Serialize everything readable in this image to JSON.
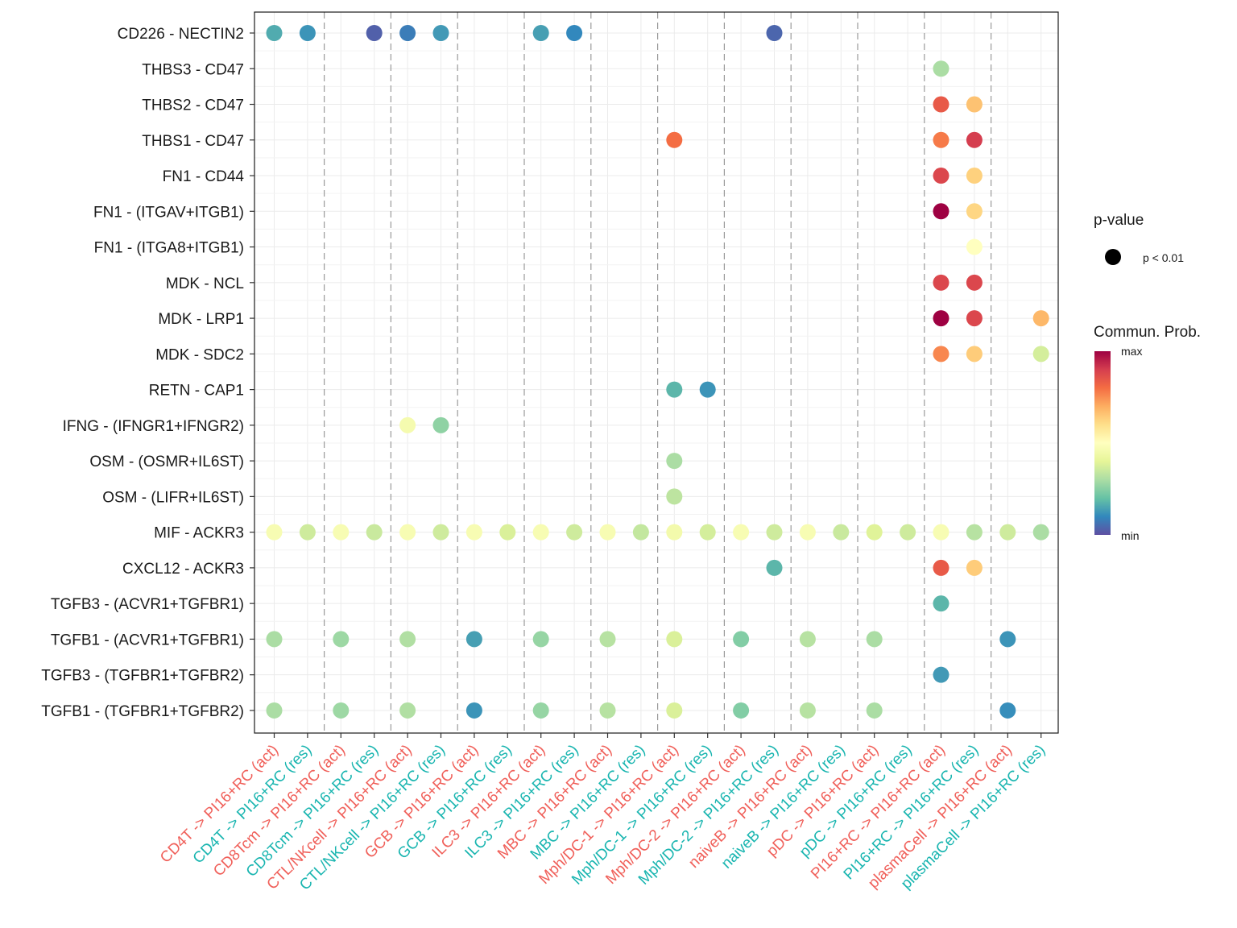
{
  "chart_data": {
    "type": "dot",
    "y_categories": [
      "CD226 - NECTIN2",
      "THBS3 - CD47",
      "THBS2 - CD47",
      "THBS1 - CD47",
      "FN1 - CD44",
      "FN1 - (ITGAV+ITGB1)",
      "FN1 - (ITGA8+ITGB1)",
      "MDK - NCL",
      "MDK - LRP1",
      "MDK - SDC2",
      "RETN - CAP1",
      "IFNG - (IFNGR1+IFNGR2)",
      "OSM - (OSMR+IL6ST)",
      "OSM - (LIFR+IL6ST)",
      "MIF - ACKR3",
      "CXCL12 - ACKR3",
      "TGFB3 - (ACVR1+TGFBR1)",
      "TGFB1 - (ACVR1+TGFBR1)",
      "TGFB3 - (TGFBR1+TGFBR2)",
      "TGFB1 - (TGFBR1+TGFBR2)"
    ],
    "x_categories": [
      {
        "label": "CD4T -> PI16+RC (act)",
        "group": "act"
      },
      {
        "label": "CD4T -> PI16+RC (res)",
        "group": "res"
      },
      {
        "label": "CD8Tcm -> PI16+RC (act)",
        "group": "act"
      },
      {
        "label": "CD8Tcm -> PI16+RC (res)",
        "group": "res"
      },
      {
        "label": "CTL/NKcell -> PI16+RC (act)",
        "group": "act"
      },
      {
        "label": "CTL/NKcell -> PI16+RC (res)",
        "group": "res"
      },
      {
        "label": "GCB -> PI16+RC (act)",
        "group": "act"
      },
      {
        "label": "GCB -> PI16+RC (res)",
        "group": "res"
      },
      {
        "label": "ILC3 -> PI16+RC (act)",
        "group": "act"
      },
      {
        "label": "ILC3 -> PI16+RC (res)",
        "group": "res"
      },
      {
        "label": "MBC -> PI16+RC (act)",
        "group": "act"
      },
      {
        "label": "MBC -> PI16+RC (res)",
        "group": "res"
      },
      {
        "label": "Mph/DC-1 -> PI16+RC (act)",
        "group": "act"
      },
      {
        "label": "Mph/DC-1 -> PI16+RC (res)",
        "group": "res"
      },
      {
        "label": "Mph/DC-2 -> PI16+RC (act)",
        "group": "act"
      },
      {
        "label": "Mph/DC-2 -> PI16+RC (res)",
        "group": "res"
      },
      {
        "label": "naiveB -> PI16+RC (act)",
        "group": "act"
      },
      {
        "label": "naiveB -> PI16+RC (res)",
        "group": "res"
      },
      {
        "label": "pDC -> PI16+RC (act)",
        "group": "act"
      },
      {
        "label": "pDC -> PI16+RC (res)",
        "group": "res"
      },
      {
        "label": "PI16+RC -> PI16+RC (act)",
        "group": "act"
      },
      {
        "label": "PI16+RC -> PI16+RC (res)",
        "group": "res"
      },
      {
        "label": "plasmaCell -> PI16+RC (act)",
        "group": "act"
      },
      {
        "label": "plasmaCell -> PI16+RC (res)",
        "group": "res"
      }
    ],
    "group_colors": {
      "act": "#F0605A",
      "res": "#19B5B0"
    },
    "colorscale": [
      "#5E4FA2",
      "#3288BD",
      "#66C2A5",
      "#ABDDA4",
      "#E6F598",
      "#FFFFBF",
      "#FEE08B",
      "#FDAE61",
      "#F46D43",
      "#D53E4F",
      "#9E0142"
    ],
    "points": [
      {
        "x": 0,
        "y": 0,
        "prob": 0.16
      },
      {
        "x": 1,
        "y": 0,
        "prob": 0.12
      },
      {
        "x": 3,
        "y": 0,
        "prob": 0.03
      },
      {
        "x": 4,
        "y": 0,
        "prob": 0.08
      },
      {
        "x": 5,
        "y": 0,
        "prob": 0.13
      },
      {
        "x": 8,
        "y": 0,
        "prob": 0.14
      },
      {
        "x": 9,
        "y": 0,
        "prob": 0.1
      },
      {
        "x": 15,
        "y": 0,
        "prob": 0.04
      },
      {
        "x": 20,
        "y": 1,
        "prob": 0.3
      },
      {
        "x": 20,
        "y": 2,
        "prob": 0.84
      },
      {
        "x": 21,
        "y": 2,
        "prob": 0.66
      },
      {
        "x": 12,
        "y": 3,
        "prob": 0.8
      },
      {
        "x": 20,
        "y": 3,
        "prob": 0.78
      },
      {
        "x": 21,
        "y": 3,
        "prob": 0.9
      },
      {
        "x": 20,
        "y": 4,
        "prob": 0.88
      },
      {
        "x": 21,
        "y": 4,
        "prob": 0.63
      },
      {
        "x": 20,
        "y": 5,
        "prob": 1.0
      },
      {
        "x": 21,
        "y": 5,
        "prob": 0.62
      },
      {
        "x": 21,
        "y": 6,
        "prob": 0.5
      },
      {
        "x": 20,
        "y": 7,
        "prob": 0.88
      },
      {
        "x": 21,
        "y": 7,
        "prob": 0.88
      },
      {
        "x": 20,
        "y": 8,
        "prob": 1.0
      },
      {
        "x": 21,
        "y": 8,
        "prob": 0.88
      },
      {
        "x": 23,
        "y": 8,
        "prob": 0.68
      },
      {
        "x": 20,
        "y": 9,
        "prob": 0.76
      },
      {
        "x": 21,
        "y": 9,
        "prob": 0.64
      },
      {
        "x": 23,
        "y": 9,
        "prob": 0.37
      },
      {
        "x": 12,
        "y": 10,
        "prob": 0.18
      },
      {
        "x": 13,
        "y": 10,
        "prob": 0.12
      },
      {
        "x": 4,
        "y": 11,
        "prob": 0.46
      },
      {
        "x": 5,
        "y": 11,
        "prob": 0.26
      },
      {
        "x": 12,
        "y": 12,
        "prob": 0.3
      },
      {
        "x": 12,
        "y": 13,
        "prob": 0.33
      },
      {
        "x": 0,
        "y": 14,
        "prob": 0.47
      },
      {
        "x": 1,
        "y": 14,
        "prob": 0.36
      },
      {
        "x": 2,
        "y": 14,
        "prob": 0.47
      },
      {
        "x": 3,
        "y": 14,
        "prob": 0.35
      },
      {
        "x": 4,
        "y": 14,
        "prob": 0.47
      },
      {
        "x": 5,
        "y": 14,
        "prob": 0.36
      },
      {
        "x": 6,
        "y": 14,
        "prob": 0.47
      },
      {
        "x": 7,
        "y": 14,
        "prob": 0.38
      },
      {
        "x": 8,
        "y": 14,
        "prob": 0.47
      },
      {
        "x": 9,
        "y": 14,
        "prob": 0.36
      },
      {
        "x": 10,
        "y": 14,
        "prob": 0.47
      },
      {
        "x": 11,
        "y": 14,
        "prob": 0.34
      },
      {
        "x": 12,
        "y": 14,
        "prob": 0.45
      },
      {
        "x": 13,
        "y": 14,
        "prob": 0.37
      },
      {
        "x": 14,
        "y": 14,
        "prob": 0.47
      },
      {
        "x": 15,
        "y": 14,
        "prob": 0.36
      },
      {
        "x": 16,
        "y": 14,
        "prob": 0.47
      },
      {
        "x": 17,
        "y": 14,
        "prob": 0.35
      },
      {
        "x": 18,
        "y": 14,
        "prob": 0.39
      },
      {
        "x": 19,
        "y": 14,
        "prob": 0.36
      },
      {
        "x": 20,
        "y": 14,
        "prob": 0.47
      },
      {
        "x": 21,
        "y": 14,
        "prob": 0.32
      },
      {
        "x": 22,
        "y": 14,
        "prob": 0.36
      },
      {
        "x": 23,
        "y": 14,
        "prob": 0.3
      },
      {
        "x": 15,
        "y": 15,
        "prob": 0.18
      },
      {
        "x": 20,
        "y": 15,
        "prob": 0.84
      },
      {
        "x": 21,
        "y": 15,
        "prob": 0.64
      },
      {
        "x": 20,
        "y": 16,
        "prob": 0.18
      },
      {
        "x": 0,
        "y": 17,
        "prob": 0.3
      },
      {
        "x": 2,
        "y": 17,
        "prob": 0.28
      },
      {
        "x": 4,
        "y": 17,
        "prob": 0.31
      },
      {
        "x": 6,
        "y": 17,
        "prob": 0.14
      },
      {
        "x": 8,
        "y": 17,
        "prob": 0.27
      },
      {
        "x": 10,
        "y": 17,
        "prob": 0.32
      },
      {
        "x": 12,
        "y": 17,
        "prob": 0.38
      },
      {
        "x": 14,
        "y": 17,
        "prob": 0.24
      },
      {
        "x": 16,
        "y": 17,
        "prob": 0.32
      },
      {
        "x": 18,
        "y": 17,
        "prob": 0.3
      },
      {
        "x": 22,
        "y": 17,
        "prob": 0.12
      },
      {
        "x": 20,
        "y": 18,
        "prob": 0.13
      },
      {
        "x": 0,
        "y": 19,
        "prob": 0.3
      },
      {
        "x": 2,
        "y": 19,
        "prob": 0.28
      },
      {
        "x": 4,
        "y": 19,
        "prob": 0.31
      },
      {
        "x": 6,
        "y": 19,
        "prob": 0.12
      },
      {
        "x": 8,
        "y": 19,
        "prob": 0.27
      },
      {
        "x": 10,
        "y": 19,
        "prob": 0.32
      },
      {
        "x": 12,
        "y": 19,
        "prob": 0.38
      },
      {
        "x": 14,
        "y": 19,
        "prob": 0.24
      },
      {
        "x": 16,
        "y": 19,
        "prob": 0.32
      },
      {
        "x": 18,
        "y": 19,
        "prob": 0.3
      },
      {
        "x": 22,
        "y": 19,
        "prob": 0.11
      }
    ],
    "legend": {
      "pvalue_title": "p-value",
      "pvalue_label": "p < 0.01",
      "colorbar_title": "Commun. Prob.",
      "colorbar_max": "max",
      "colorbar_min": "min"
    },
    "vertical_dividers": "dashed between each source pair",
    "grid": true
  }
}
